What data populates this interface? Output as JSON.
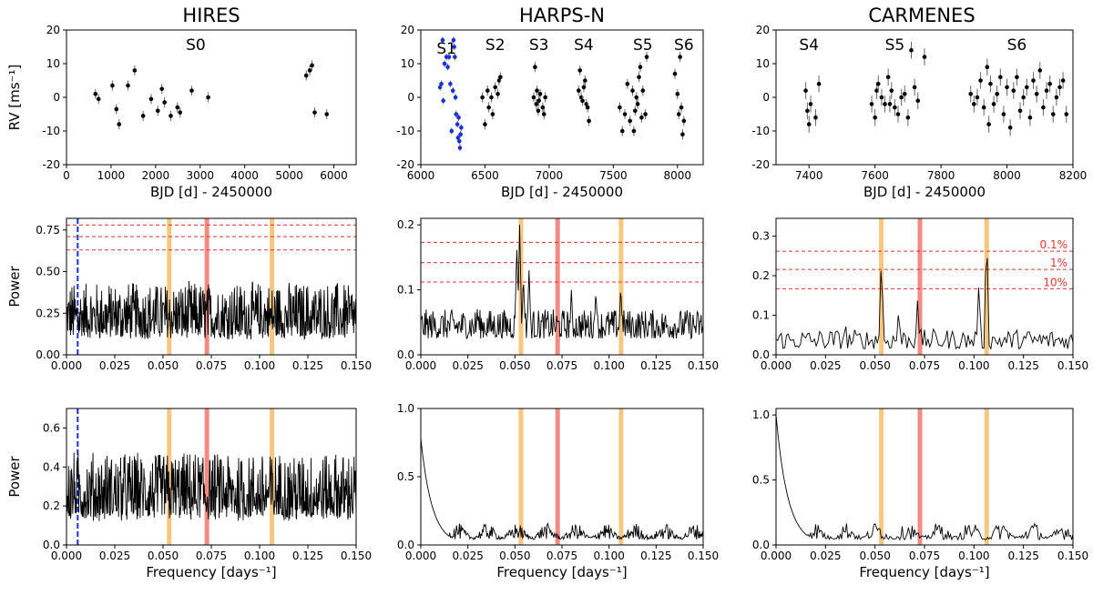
{
  "figure": {
    "columns": [
      "HIRES",
      "HARPS-N",
      "CARMENES"
    ],
    "colors": {
      "points": "#000000",
      "s1_points": "#1a2fe0",
      "bar_orange": "#f8c77f",
      "bar_red": "#f28b82",
      "fap_line": "#e3342f",
      "window_line": "#1a2fe0",
      "fap_text": "#e3342f"
    }
  },
  "chart_data": [
    {
      "id": "rv-hires",
      "type": "scatter",
      "title": "HIRES",
      "xlabel": "BJD [d] - 2450000",
      "ylabel": "RV [ms$^{-1}$]",
      "ylabel_text": "RV [ms⁻¹]",
      "xlim": [
        0,
        6500
      ],
      "ylim": [
        -20,
        20
      ],
      "xticks": [
        0,
        1000,
        2000,
        3000,
        4000,
        5000,
        6000
      ],
      "yticks": [
        -20,
        -10,
        0,
        10,
        20
      ],
      "season_labels": [
        {
          "text": "S0",
          "x": 2900,
          "y": 14
        }
      ],
      "series": [
        {
          "name": "HIRES RV",
          "color": "#000000",
          "x": [
            650,
            720,
            1030,
            1120,
            1180,
            1380,
            1530,
            1720,
            1900,
            2050,
            2140,
            2200,
            2340,
            2490,
            2550,
            2810,
            3180,
            5380,
            5460,
            5510,
            5570,
            5840
          ],
          "y": [
            1,
            -0.5,
            3.5,
            -3.5,
            -8,
            3.5,
            8,
            -5.5,
            -0.5,
            -4,
            2.5,
            -1.5,
            -5.5,
            -3,
            -4.5,
            2,
            0,
            6.5,
            8,
            9.5,
            -4.5,
            -5
          ],
          "err": [
            1.5,
            1.5,
            1.5,
            1.5,
            1.5,
            1.5,
            1.5,
            1.5,
            1.5,
            1.5,
            1.5,
            1.5,
            1.5,
            1.5,
            1.5,
            1.5,
            1.5,
            1.5,
            1.5,
            1.5,
            1.5,
            1.5
          ]
        }
      ]
    },
    {
      "id": "rv-harpsn",
      "type": "scatter",
      "title": "HARPS-N",
      "xlabel": "BJD [d] - 2450000",
      "ylabel": "",
      "xlim": [
        6000,
        8200
      ],
      "ylim": [
        -20,
        20
      ],
      "xticks": [
        6000,
        6500,
        7000,
        7500,
        8000
      ],
      "yticks": [
        -20,
        -10,
        0,
        10,
        20
      ],
      "season_labels": [
        {
          "text": "S1",
          "x": 6200,
          "y": 13
        },
        {
          "text": "S2",
          "x": 6580,
          "y": 14
        },
        {
          "text": "S3",
          "x": 6920,
          "y": 14
        },
        {
          "text": "S4",
          "x": 7270,
          "y": 14
        },
        {
          "text": "S5",
          "x": 7730,
          "y": 14
        },
        {
          "text": "S6",
          "x": 8050,
          "y": 14
        }
      ],
      "series": [
        {
          "name": "S1",
          "color": "#1a2fe0",
          "x": [
            6150,
            6160,
            6170,
            6175,
            6185,
            6200,
            6210,
            6220,
            6230,
            6240,
            6250,
            6255,
            6260,
            6265,
            6270,
            6275,
            6285,
            6290,
            6295,
            6300,
            6305,
            6310,
            6315
          ],
          "y": [
            3,
            4,
            17,
            -1,
            10,
            12,
            9,
            12,
            4,
            -10,
            2,
            17,
            15,
            12,
            0,
            -5,
            -8,
            -12,
            -6,
            -13,
            -15,
            -11,
            -9
          ],
          "err": [
            1,
            1,
            1,
            1,
            1,
            1,
            1,
            1,
            1,
            1,
            1,
            1,
            1,
            1,
            1,
            1,
            1,
            1,
            1,
            1,
            1,
            1,
            1
          ]
        },
        {
          "name": "S2-S6",
          "color": "#000000",
          "x": [
            6480,
            6500,
            6520,
            6530,
            6550,
            6560,
            6580,
            6600,
            6610,
            6620,
            6880,
            6890,
            6900,
            6905,
            6915,
            6920,
            6930,
            6950,
            6960,
            6970,
            7230,
            7240,
            7250,
            7260,
            7270,
            7280,
            7290,
            7300,
            7310,
            7550,
            7570,
            7590,
            7610,
            7630,
            7650,
            7660,
            7670,
            7680,
            7690,
            7700,
            7710,
            7720,
            7730,
            7750,
            7760,
            7980,
            8000,
            8010,
            8020,
            8030,
            8040,
            8050
          ],
          "y": [
            0,
            -8,
            2,
            -3,
            0,
            -5,
            3,
            1,
            5,
            6,
            0,
            9,
            -2,
            2,
            -4,
            -1,
            1,
            -3,
            -5,
            0,
            2,
            8,
            0,
            -1,
            3,
            5,
            -2,
            -3,
            -7,
            -3,
            -10,
            -5,
            4,
            -7,
            2,
            -10,
            -4,
            0,
            -2,
            6,
            9,
            -6,
            2,
            -5,
            12,
            7,
            1,
            -5,
            12,
            -3,
            -11,
            -7
          ],
          "err": [
            1.5,
            1.5,
            1.5,
            1.5,
            1.5,
            1.5,
            1.5,
            1.5,
            1.5,
            1.5,
            1.5,
            1.5,
            1.5,
            1.5,
            1.5,
            1.5,
            1.5,
            1.5,
            1.5,
            1.5,
            1.5,
            1.5,
            1.5,
            1.5,
            1.5,
            1.5,
            1.5,
            1.5,
            1.5,
            1.5,
            1.5,
            1.5,
            1.5,
            1.5,
            1.5,
            1.5,
            1.5,
            1.5,
            1.5,
            1.5,
            1.5,
            1.5,
            1.5,
            1.5,
            1.5,
            1.5,
            1.5,
            1.5,
            1.5,
            1.5,
            1.5,
            1.5
          ]
        }
      ]
    },
    {
      "id": "rv-carmenes",
      "type": "scatter",
      "title": "CARMENES",
      "xlabel": "BJD [d] - 2450000",
      "ylabel": "",
      "xlim": [
        7300,
        8200
      ],
      "ylim": [
        -20,
        20
      ],
      "xticks": [
        7400,
        7600,
        7800,
        8000,
        8200
      ],
      "yticks": [
        -20,
        -10,
        0,
        10,
        20
      ],
      "season_labels": [
        {
          "text": "S4",
          "x": 7400,
          "y": 14
        },
        {
          "text": "S5",
          "x": 7660,
          "y": 14
        },
        {
          "text": "S6",
          "x": 8030,
          "y": 14
        }
      ],
      "series": [
        {
          "name": "CARMENES RV",
          "color": "#000000",
          "x": [
            7390,
            7395,
            7400,
            7405,
            7420,
            7430,
            7590,
            7600,
            7605,
            7610,
            7620,
            7630,
            7640,
            7645,
            7650,
            7660,
            7670,
            7680,
            7690,
            7700,
            7710,
            7720,
            7730,
            7750,
            7890,
            7900,
            7910,
            7920,
            7930,
            7940,
            7945,
            7950,
            7960,
            7970,
            7980,
            7990,
            8000,
            8010,
            8020,
            8030,
            8040,
            8050,
            8060,
            8070,
            8080,
            8090,
            8100,
            8110,
            8120,
            8130,
            8140,
            8150,
            8160,
            8170,
            8180
          ],
          "y": [
            2,
            -4,
            -8,
            -2,
            -6,
            4,
            -2,
            -6,
            2,
            4,
            0,
            -2,
            6,
            -2,
            2,
            -3,
            -5,
            0,
            1,
            -6,
            14,
            3,
            -1,
            12,
            1,
            -2,
            0,
            5,
            -3,
            9,
            -8,
            4,
            -2,
            1,
            6,
            -5,
            3,
            -9,
            2,
            6,
            -4,
            0,
            3,
            -6,
            5,
            1,
            8,
            -3,
            2,
            4,
            -5,
            0,
            3,
            5,
            -5
          ],
          "err": [
            2.5,
            2.5,
            2.5,
            2.5,
            2.5,
            2.5,
            2.5,
            2.5,
            2.5,
            2.5,
            2.5,
            2.5,
            2.5,
            2.5,
            2.5,
            2.5,
            2.5,
            2.5,
            2.5,
            2.5,
            2.5,
            2.5,
            2.5,
            2.5,
            2.5,
            2.5,
            2.5,
            2.5,
            2.5,
            2.5,
            2.5,
            2.5,
            2.5,
            2.5,
            2.5,
            2.5,
            2.5,
            2.5,
            2.5,
            2.5,
            2.5,
            2.5,
            2.5,
            2.5,
            2.5,
            2.5,
            2.5,
            2.5,
            2.5,
            2.5,
            2.5,
            2.5,
            2.5,
            2.5,
            2.5
          ]
        }
      ]
    },
    {
      "id": "gls-hires",
      "type": "line",
      "xlabel": "",
      "ylabel": "Power",
      "xlim": [
        0,
        0.15
      ],
      "ylim": [
        0,
        0.82
      ],
      "xticks": [
        0.0,
        0.025,
        0.05,
        0.075,
        0.1,
        0.125,
        0.15
      ],
      "xtick_labels": [
        "0.000",
        "0.025",
        "0.050",
        "0.075",
        "0.100",
        "0.125",
        "0.150"
      ],
      "yticks": [
        0.0,
        0.25,
        0.5,
        0.75
      ],
      "ytick_labels": [
        "0.00",
        "0.25",
        "0.50",
        "0.75"
      ],
      "fap_levels": [
        0.63,
        0.71,
        0.78
      ],
      "fap_labels": [],
      "bands": [
        {
          "x": 0.0532,
          "color": "#f8c77f"
        },
        {
          "x": 0.0727,
          "color": "#f28b82"
        },
        {
          "x": 0.1064,
          "color": "#f8c77f"
        }
      ],
      "vline": {
        "x": 0.0058,
        "color": "#1a2fe0"
      },
      "signal": {
        "n": 700,
        "base": 0.09,
        "amp": 0.32,
        "kind": "noisy"
      }
    },
    {
      "id": "gls-harpsn",
      "type": "line",
      "xlabel": "",
      "ylabel": "",
      "xlim": [
        0,
        0.15
      ],
      "ylim": [
        0,
        0.21
      ],
      "xticks": [
        0.0,
        0.025,
        0.05,
        0.075,
        0.1,
        0.125,
        0.15
      ],
      "xtick_labels": [
        "0.000",
        "0.025",
        "0.050",
        "0.075",
        "0.100",
        "0.125",
        "0.150"
      ],
      "yticks": [
        0.0,
        0.1,
        0.2
      ],
      "ytick_labels": [
        "0.0",
        "0.1",
        "0.2"
      ],
      "fap_levels": [
        0.112,
        0.142,
        0.173
      ],
      "fap_labels": [],
      "bands": [
        {
          "x": 0.0532,
          "color": "#f8c77f"
        },
        {
          "x": 0.0727,
          "color": "#f28b82"
        },
        {
          "x": 0.1064,
          "color": "#f8c77f"
        }
      ],
      "vline": null,
      "signal": {
        "n": 420,
        "base": 0.025,
        "amp": 0.045,
        "kind": "peaks",
        "peaks": [
          {
            "x": 0.0525,
            "h": 0.2
          },
          {
            "x": 0.051,
            "h": 0.17
          },
          {
            "x": 0.0545,
            "h": 0.12
          },
          {
            "x": 0.0575,
            "h": 0.13
          },
          {
            "x": 0.08,
            "h": 0.1
          },
          {
            "x": 0.093,
            "h": 0.1
          },
          {
            "x": 0.1062,
            "h": 0.105
          },
          {
            "x": 0.03,
            "h": 0.07
          }
        ]
      }
    },
    {
      "id": "gls-carmenes",
      "type": "line",
      "xlabel": "",
      "ylabel": "",
      "xlim": [
        0,
        0.15
      ],
      "ylim": [
        0,
        0.345
      ],
      "xticks": [
        0.0,
        0.025,
        0.05,
        0.075,
        0.1,
        0.125,
        0.15
      ],
      "xtick_labels": [
        "0.000",
        "0.025",
        "0.050",
        "0.075",
        "0.100",
        "0.125",
        "0.150"
      ],
      "yticks": [
        0.0,
        0.1,
        0.2,
        0.3
      ],
      "ytick_labels": [
        "0.0",
        "0.1",
        "0.2",
        "0.3"
      ],
      "fap_levels": [
        0.167,
        0.216,
        0.262
      ],
      "fap_labels": [
        "10%",
        "1%",
        "0.1%"
      ],
      "bands": [
        {
          "x": 0.0532,
          "color": "#f8c77f"
        },
        {
          "x": 0.0727,
          "color": "#f28b82"
        },
        {
          "x": 0.1064,
          "color": "#f8c77f"
        }
      ],
      "vline": null,
      "signal": {
        "n": 170,
        "base": 0.015,
        "amp": 0.05,
        "kind": "peaks",
        "peaks": [
          {
            "x": 0.0532,
            "h": 0.26
          },
          {
            "x": 0.0715,
            "h": 0.14
          },
          {
            "x": 0.1064,
            "h": 0.33
          },
          {
            "x": 0.1025,
            "h": 0.19
          },
          {
            "x": 0.035,
            "h": 0.09
          },
          {
            "x": 0.062,
            "h": 0.12
          }
        ]
      }
    },
    {
      "id": "win-hires",
      "type": "line",
      "xlabel": "Frequency [days$^{-1}$]",
      "xlabel_text": "Frequency [days⁻¹]",
      "ylabel": "Power",
      "xlim": [
        0,
        0.15
      ],
      "ylim": [
        0,
        0.7
      ],
      "xticks": [
        0.0,
        0.025,
        0.05,
        0.075,
        0.1,
        0.125,
        0.15
      ],
      "xtick_labels": [
        "0.000",
        "0.025",
        "0.050",
        "0.075",
        "0.100",
        "0.125",
        "0.150"
      ],
      "yticks": [
        0.0,
        0.2,
        0.4,
        0.6
      ],
      "ytick_labels": [
        "0.0",
        "0.2",
        "0.4",
        "0.6"
      ],
      "fap_levels": [],
      "fap_labels": [],
      "bands": [
        {
          "x": 0.0532,
          "color": "#f8c77f"
        },
        {
          "x": 0.0727,
          "color": "#f28b82"
        },
        {
          "x": 0.1064,
          "color": "#f8c77f"
        }
      ],
      "vline": {
        "x": 0.0058,
        "color": "#1a2fe0"
      },
      "signal": {
        "n": 700,
        "base": 0.12,
        "amp": 0.33,
        "kind": "noisy"
      }
    },
    {
      "id": "win-harpsn",
      "type": "line",
      "xlabel": "Frequency [days$^{-1}$]",
      "xlabel_text": "Frequency [days⁻¹]",
      "ylabel": "",
      "xlim": [
        0,
        0.15
      ],
      "ylim": [
        0,
        1.0
      ],
      "xticks": [
        0.0,
        0.025,
        0.05,
        0.075,
        0.1,
        0.125,
        0.15
      ],
      "xtick_labels": [
        "0.000",
        "0.025",
        "0.050",
        "0.075",
        "0.100",
        "0.125",
        "0.150"
      ],
      "yticks": [
        0.0,
        0.5,
        1.0
      ],
      "ytick_labels": [
        "0.0",
        "0.5",
        "1.0"
      ],
      "fap_levels": [],
      "fap_labels": [],
      "bands": [
        {
          "x": 0.0532,
          "color": "#f8c77f"
        },
        {
          "x": 0.0727,
          "color": "#f28b82"
        },
        {
          "x": 0.1064,
          "color": "#f8c77f"
        }
      ],
      "vline": null,
      "signal": {
        "n": 380,
        "base": 0.08,
        "amp": 0.12,
        "kind": "window",
        "start": 0.78
      }
    },
    {
      "id": "win-carmenes",
      "type": "line",
      "xlabel": "Frequency [days$^{-1}$]",
      "xlabel_text": "Frequency [days⁻¹]",
      "ylabel": "",
      "xlim": [
        0,
        0.15
      ],
      "ylim": [
        0,
        1.05
      ],
      "xticks": [
        0.0,
        0.025,
        0.05,
        0.075,
        0.1,
        0.125,
        0.15
      ],
      "xtick_labels": [
        "0.000",
        "0.025",
        "0.050",
        "0.075",
        "0.100",
        "0.125",
        "0.150"
      ],
      "yticks": [
        0.0,
        0.5,
        1.0
      ],
      "ytick_labels": [
        "0.0",
        "0.5",
        "1.0"
      ],
      "fap_levels": [],
      "fap_labels": [],
      "bands": [
        {
          "x": 0.0532,
          "color": "#f8c77f"
        },
        {
          "x": 0.0727,
          "color": "#f28b82"
        },
        {
          "x": 0.1064,
          "color": "#f8c77f"
        }
      ],
      "vline": null,
      "signal": {
        "n": 240,
        "base": 0.08,
        "amp": 0.14,
        "kind": "window",
        "start": 1.0
      }
    }
  ]
}
